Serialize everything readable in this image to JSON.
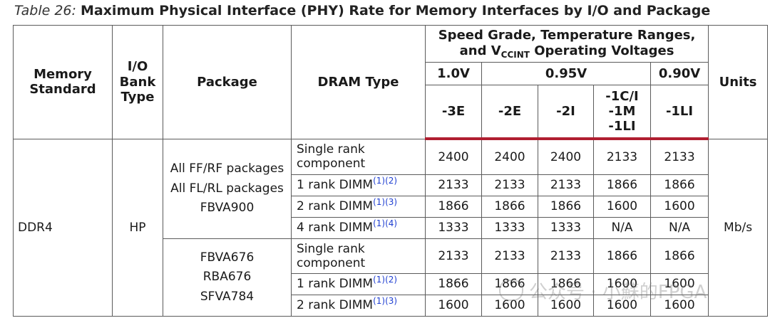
{
  "caption": {
    "number": "Table 26:",
    "title": "Maximum Physical Interface (PHY) Rate for Memory Interfaces by I/O and Package"
  },
  "header": {
    "memory_standard": "Memory Standard",
    "io_bank_type": "I/O Bank Type",
    "package": "Package",
    "dram_type": "DRAM Type",
    "speed_group_line1": "Speed Grade, Temperature Ranges,",
    "speed_group_line2_pre": "and V",
    "speed_group_sub": "CCINT",
    "speed_group_line2_post": " Operating Voltages",
    "units": "Units",
    "voltages": [
      "1.0V",
      "0.95V",
      "0.90V"
    ],
    "grades": [
      "-3E",
      "-2E",
      "-2I",
      "-1C/I\n-1M\n-1LI",
      "-1LI"
    ]
  },
  "body": {
    "memory_standard": "DDR4",
    "io_bank_type": "HP",
    "units": "Mb/s",
    "groups": [
      {
        "package_lines": [
          "All FF/RF packages",
          "All FL/RL packages",
          "FBVA900"
        ],
        "rows": [
          {
            "dram": "Single rank\ncomponent",
            "notes": "",
            "values": [
              "2400",
              "2400",
              "2400",
              "2133",
              "2133"
            ]
          },
          {
            "dram": "1 rank DIMM",
            "notes": "(1)(2)",
            "values": [
              "2133",
              "2133",
              "2133",
              "1866",
              "1866"
            ]
          },
          {
            "dram": "2 rank DIMM",
            "notes": "(1)(3)",
            "values": [
              "1866",
              "1866",
              "1866",
              "1600",
              "1600"
            ]
          },
          {
            "dram": "4 rank DIMM",
            "notes": "(1)(4)",
            "values": [
              "1333",
              "1333",
              "1333",
              "N/A",
              "N/A"
            ]
          }
        ]
      },
      {
        "package_lines": [
          "FBVA676",
          "RBA676",
          "SFVA784"
        ],
        "rows": [
          {
            "dram": "Single rank\ncomponent",
            "notes": "",
            "values": [
              "2133",
              "2133",
              "2133",
              "1866",
              "1866"
            ]
          },
          {
            "dram": "1 rank DIMM",
            "notes": "(1)(2)",
            "values": [
              "1866",
              "1866",
              "1866",
              "1600",
              "1600"
            ]
          },
          {
            "dram": "2 rank DIMM",
            "notes": "(1)(3)",
            "values": [
              "1600",
              "1600",
              "1600",
              "1600",
              "1600"
            ]
          }
        ]
      }
    ]
  },
  "watermark": "公众号 · 小蘇的FPGA"
}
